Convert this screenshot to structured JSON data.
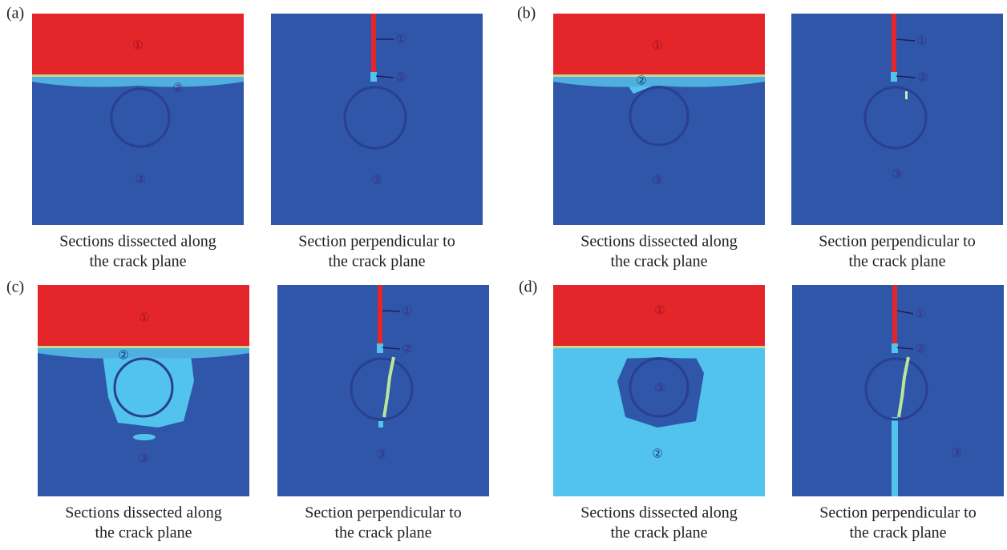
{
  "panels": [
    {
      "label": "(a)",
      "images": [
        {
          "caption": [
            "Sections dissected along",
            "the crack plane"
          ],
          "markers": [
            "①",
            "②",
            "③"
          ]
        },
        {
          "caption": [
            "Section perpendicular to",
            "the crack plane"
          ],
          "markers": [
            "①",
            "②",
            "③"
          ]
        }
      ]
    },
    {
      "label": "(b)",
      "images": [
        {
          "caption": [
            "Sections dissected along",
            "the crack plane"
          ],
          "markers": [
            "①",
            "②",
            "③"
          ]
        },
        {
          "caption": [
            "Section perpendicular to",
            "the crack plane"
          ],
          "markers": [
            "①",
            "②",
            "③"
          ]
        }
      ]
    },
    {
      "label": "(c)",
      "images": [
        {
          "caption": [
            "Sections dissected along",
            "the crack plane"
          ],
          "markers": [
            "①",
            "②",
            "③"
          ]
        },
        {
          "caption": [
            "Section perpendicular to",
            "the crack plane"
          ],
          "markers": [
            "①",
            "②",
            "③"
          ]
        }
      ]
    },
    {
      "label": "(d)",
      "images": [
        {
          "caption": [
            "Sections dissected along",
            "the crack plane"
          ],
          "markers": [
            "①",
            "③",
            "②"
          ]
        },
        {
          "caption": [
            "Section perpendicular to",
            "the crack plane"
          ],
          "markers": [
            "①",
            "②",
            "③"
          ]
        }
      ]
    }
  ]
}
